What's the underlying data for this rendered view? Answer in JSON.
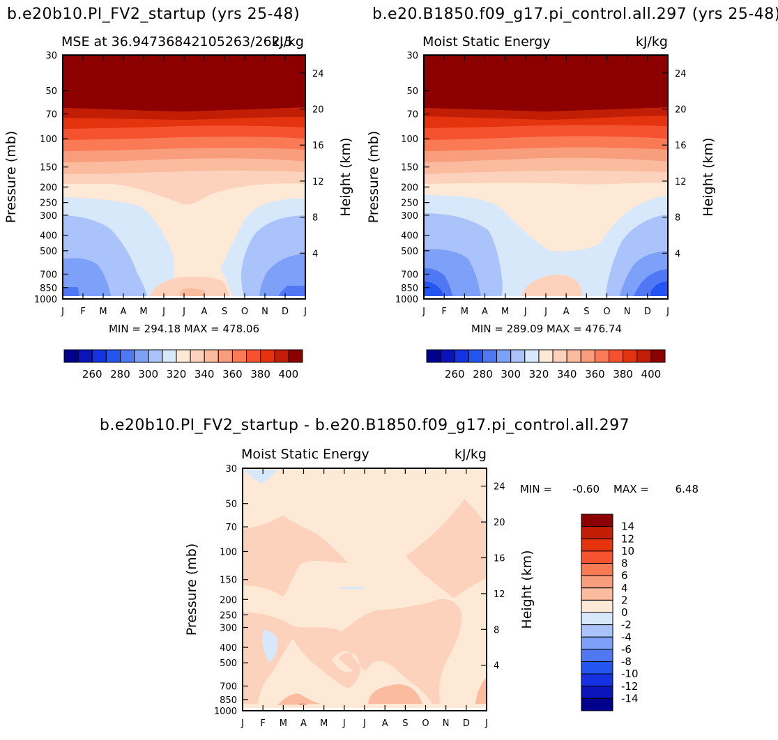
{
  "colors": {
    "neg": [
      "#00008c",
      "#0a14b9",
      "#1432e1",
      "#2356f0",
      "#5078f5",
      "#7da0f8",
      "#aac3fa",
      "#d7e8fb"
    ],
    "pos": [
      "#fde9d6",
      "#fcd2bc",
      "#fbbb9f",
      "#f99e7d",
      "#f97a55",
      "#f55230",
      "#e3330f",
      "#c21e05",
      "#8c0000"
    ],
    "diffcb": [
      "#8c0000",
      "#c21e05",
      "#e3330f",
      "#f55230",
      "#f97a55",
      "#f99e7d",
      "#fbbb9f",
      "#fde9d6",
      "#d7e8fb",
      "#aac3fa",
      "#7da0f8",
      "#5078f5",
      "#2356f0",
      "#1432e1",
      "#0a14b9",
      "#00008c"
    ]
  },
  "chart_data": [
    {
      "type": "contour",
      "title": "b.e20b10.PI_FV2_startup (yrs 25-48)",
      "subtitle_left": "MSE at 36.94736842105263/262.5",
      "subtitle_right": "kJ/kg",
      "ylabel": "Pressure (mb)",
      "y2label": "Height (km)",
      "months": [
        "J",
        "F",
        "M",
        "A",
        "M",
        "J",
        "J",
        "A",
        "S",
        "O",
        "N",
        "D",
        "J"
      ],
      "pressure_ticks": [
        "30",
        "50",
        "70",
        "100",
        "150",
        "200",
        "250",
        "300",
        "400",
        "500",
        "700",
        "850",
        "1000"
      ],
      "height_ticks": [
        "24",
        "20",
        "16",
        "12",
        "8",
        "4"
      ],
      "stats": "MIN = 294.18 MAX = 478.06",
      "colorbar_labels": [
        "260",
        "280",
        "300",
        "320",
        "340",
        "360",
        "380",
        "400"
      ]
    },
    {
      "type": "contour",
      "title": "b.e20.B1850.f09_g17.pi_control.all.297 (yrs 25-48)",
      "subtitle_left": "Moist Static Energy",
      "subtitle_right": "kJ/kg",
      "ylabel": "Pressure (mb)",
      "y2label": "Height (km)",
      "months": [
        "J",
        "F",
        "M",
        "A",
        "M",
        "J",
        "J",
        "A",
        "S",
        "O",
        "N",
        "D",
        "J"
      ],
      "pressure_ticks": [
        "30",
        "50",
        "70",
        "100",
        "150",
        "200",
        "250",
        "300",
        "400",
        "500",
        "700",
        "850",
        "1000"
      ],
      "height_ticks": [
        "24",
        "20",
        "16",
        "12",
        "8",
        "4"
      ],
      "stats": "MIN = 289.09 MAX = 476.74",
      "colorbar_labels": [
        "260",
        "280",
        "300",
        "320",
        "340",
        "360",
        "380",
        "400"
      ]
    },
    {
      "type": "contour",
      "title": "b.e20b10.PI_FV2_startup - b.e20.B1850.f09_g17.pi_control.all.297",
      "subtitle_left": "Moist Static Energy",
      "subtitle_right": "kJ/kg",
      "ylabel": "Pressure (mb)",
      "y2label": "Height (km)",
      "months": [
        "J",
        "F",
        "M",
        "A",
        "M",
        "J",
        "J",
        "A",
        "S",
        "O",
        "N",
        "D",
        "J"
      ],
      "pressure_ticks": [
        "30",
        "50",
        "70",
        "100",
        "150",
        "200",
        "250",
        "300",
        "400",
        "500",
        "700",
        "850",
        "1000"
      ],
      "height_ticks": [
        "24",
        "20",
        "16",
        "12",
        "8",
        "4"
      ],
      "stats_min_label": "MIN =",
      "stats_min": "-0.60",
      "stats_max_label": "MAX =",
      "stats_max": "6.48",
      "colorbar_labels": [
        "14",
        "12",
        "10",
        "8",
        "6",
        "4",
        "2",
        "0",
        "-2",
        "-4",
        "-6",
        "-8",
        "-10",
        "-12",
        "-14"
      ]
    }
  ]
}
